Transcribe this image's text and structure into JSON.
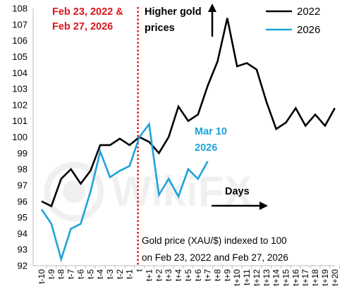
{
  "chart_data": {
    "type": "line",
    "title": "",
    "xlabel": "",
    "ylabel": "",
    "ylim": [
      92,
      108
    ],
    "yticks": [
      92,
      93,
      94,
      95,
      96,
      97,
      98,
      99,
      100,
      101,
      102,
      103,
      104,
      105,
      106,
      107,
      108
    ],
    "categories": [
      "t-10",
      "t-9",
      "t-8",
      "t-7",
      "t-6",
      "t-5",
      "t-4",
      "t-3",
      "t-2",
      "t-1",
      "t",
      "t+1",
      "t+2",
      "t+3",
      "t+4",
      "t+5",
      "t+6",
      "t+7",
      "t+8",
      "t+9",
      "t+10",
      "t+11",
      "t+12",
      "t+13",
      "t+14",
      "t+15",
      "t+16",
      "t+17",
      "t+18",
      "t+19",
      "t+20"
    ],
    "grid": false,
    "legend_position": "top-right",
    "series": [
      {
        "name": "2022",
        "color": "#000000",
        "values": [
          96.0,
          95.7,
          97.4,
          98.0,
          97.1,
          97.9,
          99.5,
          99.5,
          99.9,
          99.5,
          100.0,
          99.7,
          99.0,
          100.0,
          101.9,
          101.0,
          101.4,
          103.2,
          104.7,
          107.4,
          104.4,
          104.6,
          104.2,
          102.2,
          100.5,
          100.9,
          101.8,
          100.7,
          101.4,
          100.7,
          101.8
        ]
      },
      {
        "name": "2026",
        "color": "#1fa3d9",
        "values": [
          95.5,
          94.6,
          92.4,
          94.3,
          94.6,
          96.6,
          99.1,
          97.5,
          97.9,
          98.2,
          100.0,
          100.8,
          96.4,
          97.4,
          96.3,
          98.0,
          97.4,
          98.5,
          null,
          null,
          null,
          null,
          null,
          null,
          null,
          null,
          null,
          null,
          null,
          null,
          null
        ]
      }
    ],
    "vline_at": "t",
    "annotations": {
      "date_label_line1": "Feb 23, 2022 &",
      "date_label_line2": "Feb 27, 2026",
      "date_label_color": "#d9151b",
      "higher_line1": "Higher gold",
      "higher_line2": "prices",
      "mar10_line1": "Mar 10",
      "mar10_line2": "2026",
      "mar10_color": "#1fa3d9",
      "days_label": "Days",
      "note_line1": "Gold price (XAU/$) indexed to 100",
      "note_line2": "on Feb 23, 2022 and Feb 27, 2026"
    },
    "watermark": "WikiFX"
  }
}
